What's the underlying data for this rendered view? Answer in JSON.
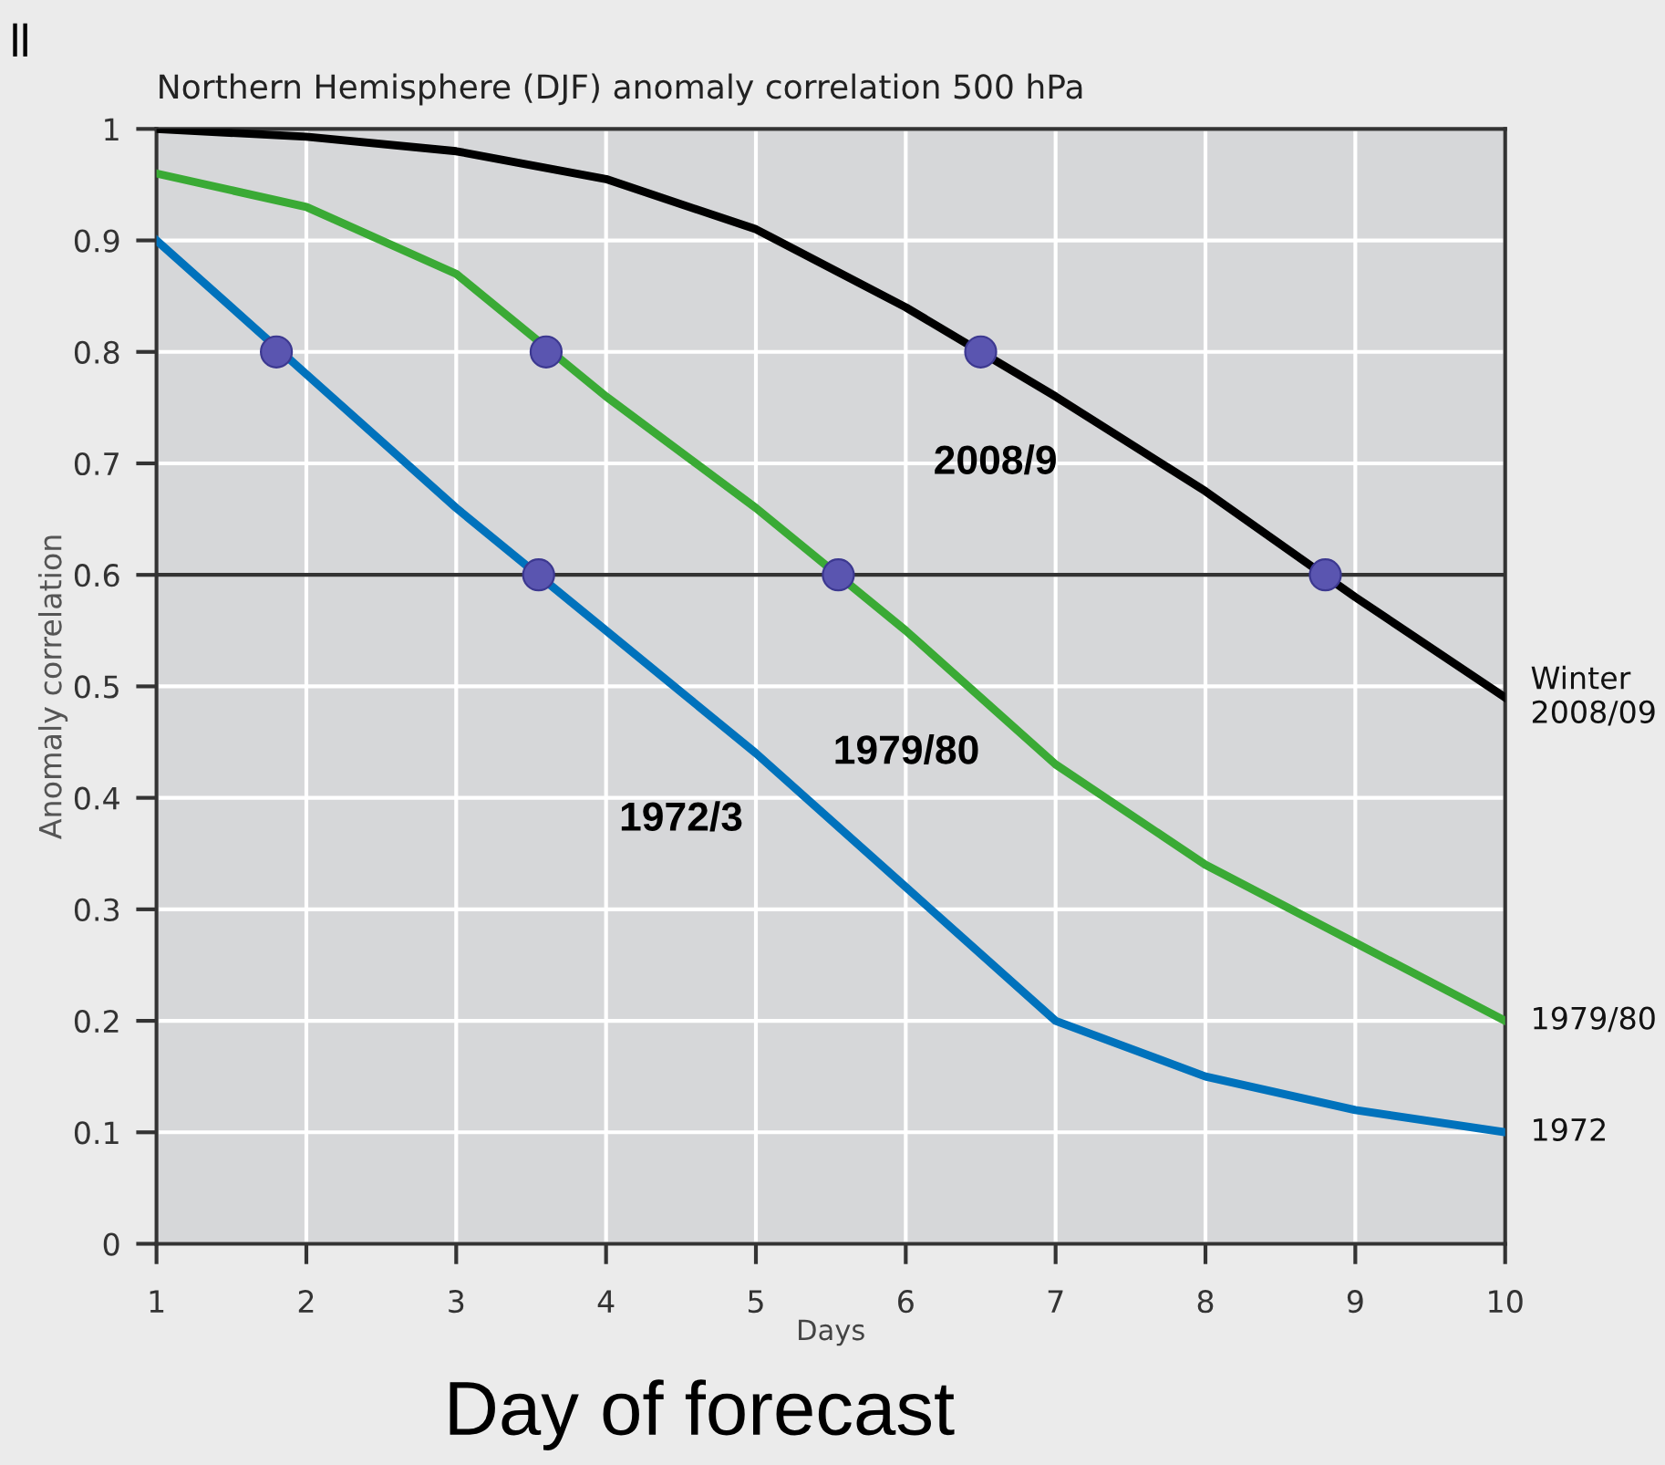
{
  "chart_data": {
    "type": "line",
    "title": "Northern Hemisphere (DJF) anomaly correlation 500 hPa",
    "xlabel": "Days",
    "ylabel": "Anomaly correlation",
    "x": [
      1,
      2,
      3,
      4,
      5,
      6,
      7,
      8,
      9,
      10
    ],
    "series": [
      {
        "name": "Winter\n2008/09",
        "color": "#000000",
        "values": [
          1.0,
          0.993,
          0.98,
          0.955,
          0.91,
          0.84,
          0.76,
          0.675,
          0.58,
          0.49
        ]
      },
      {
        "name": "1979/80",
        "color": "#3aaa35",
        "values": [
          0.96,
          0.93,
          0.87,
          0.76,
          0.66,
          0.55,
          0.43,
          0.34,
          0.27,
          0.2
        ]
      },
      {
        "name": "1972",
        "color": "#0072bc",
        "values": [
          0.9,
          0.78,
          0.66,
          0.55,
          0.44,
          0.32,
          0.2,
          0.15,
          0.12,
          0.1
        ]
      },
      {
        "type": "scatter",
        "color": "#5a55b0",
        "marker": "circle",
        "x": [
          1.8,
          3.55,
          3.6,
          5.55,
          6.5,
          8.8
        ],
        "values": [
          0.8,
          0.6,
          0.8,
          0.6,
          0.8,
          0.6
        ]
      }
    ],
    "xlim": [
      1,
      10
    ],
    "ylim": [
      0,
      1
    ],
    "xticks": [
      1,
      2,
      3,
      4,
      5,
      6,
      7,
      8,
      9,
      10
    ],
    "yticks": [
      0,
      0.1,
      0.2,
      0.3,
      0.4,
      0.5,
      0.6,
      0.7,
      0.8,
      0.9,
      1
    ],
    "grid": true,
    "legend": false,
    "ref_lines": [
      {
        "axis": "y",
        "value": 0.6,
        "color": "#333333"
      }
    ],
    "annotations": [
      "2008/9",
      "1979/80",
      "1972/3",
      "Day of forecast",
      "ll"
    ]
  }
}
